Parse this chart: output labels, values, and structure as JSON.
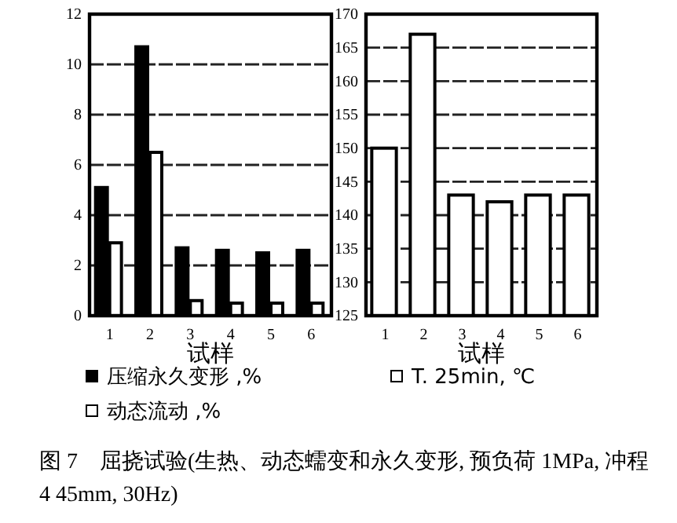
{
  "chart_data": [
    {
      "type": "bar",
      "xlabel": "试样",
      "categories": [
        "1",
        "2",
        "3",
        "4",
        "5",
        "6"
      ],
      "ylim": [
        0,
        12
      ],
      "yticks": [
        0,
        2,
        4,
        6,
        8,
        10,
        12
      ],
      "grid": "y",
      "legend": "bottom",
      "series": [
        {
          "name": "压缩永久变形 ,%",
          "color": "#000000",
          "values": [
            5.1,
            10.7,
            2.7,
            2.6,
            2.5,
            2.6
          ]
        },
        {
          "name": "动态流动 ,%",
          "color": "#ffffff",
          "values": [
            2.9,
            6.5,
            0.6,
            0.5,
            0.5,
            0.5
          ]
        }
      ],
      "annotations": [
        "图 7　屈挠试验(生热、动态蠕变和永久变形, 预负荷 1MPa, 冲程 4 45mm, 30Hz)"
      ]
    },
    {
      "type": "bar",
      "xlabel": "试样",
      "categories": [
        "1",
        "2",
        "3",
        "4",
        "5",
        "6"
      ],
      "ylim": [
        125,
        170
      ],
      "yticks": [
        125,
        130,
        135,
        140,
        145,
        150,
        155,
        160,
        165,
        170
      ],
      "grid": "y",
      "legend": "bottom",
      "series": [
        {
          "name": "T. 25min, ℃",
          "color": "#ffffff",
          "values": [
            150,
            167,
            143,
            142,
            143,
            143
          ]
        }
      ]
    }
  ]
}
